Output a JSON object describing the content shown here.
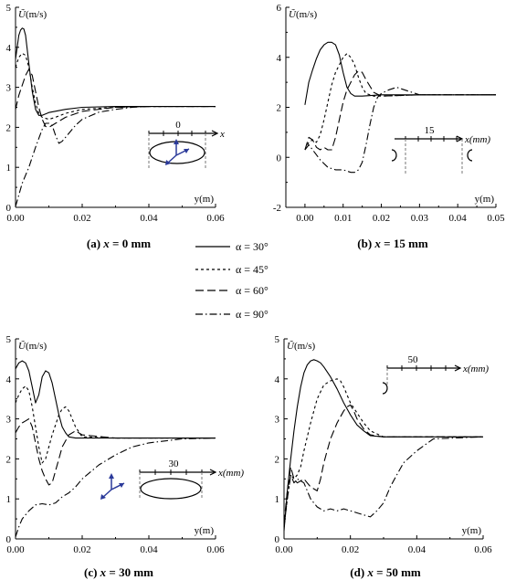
{
  "legend": [
    {
      "label": "α = 30°",
      "dash": "solid"
    },
    {
      "label": "α = 45°",
      "dash": "short"
    },
    {
      "label": "α = 60°",
      "dash": "long"
    },
    {
      "label": "α = 90°",
      "dash": "dashdot"
    }
  ],
  "chart_data": [
    {
      "type": "line",
      "caption_prefix": "(a) ",
      "caption_var": "x",
      "caption_rest": " = 0 mm",
      "ylabel_sym": "Ũ",
      "ylabel_unit": "(m/s)",
      "xlabel": "y(m)",
      "xlim": [
        0,
        0.06
      ],
      "ylim": [
        0,
        5
      ],
      "xticks": [
        "0.00",
        "0.02",
        "0.04",
        "0.06"
      ],
      "yticks": [
        "0",
        "1",
        "2",
        "3",
        "4",
        "5"
      ],
      "inset": {
        "label": "0",
        "axis": "x"
      },
      "series": [
        {
          "name": "α = 30°",
          "x": [
            0,
            0.0005,
            0.001,
            0.0015,
            0.002,
            0.0025,
            0.003,
            0.004,
            0.005,
            0.006,
            0.007,
            0.008,
            0.01,
            0.015,
            0.02,
            0.03,
            0.04,
            0.06
          ],
          "y": [
            3.7,
            4.0,
            4.3,
            4.43,
            4.48,
            4.46,
            4.3,
            3.6,
            2.9,
            2.45,
            2.3,
            2.3,
            2.37,
            2.45,
            2.5,
            2.52,
            2.52,
            2.52
          ]
        },
        {
          "name": "α = 45°",
          "x": [
            0,
            0.001,
            0.002,
            0.003,
            0.004,
            0.005,
            0.006,
            0.007,
            0.008,
            0.01,
            0.012,
            0.015,
            0.02,
            0.03,
            0.04,
            0.06
          ],
          "y": [
            3.5,
            3.75,
            3.85,
            3.8,
            3.5,
            3.0,
            2.6,
            2.35,
            2.25,
            2.2,
            2.25,
            2.35,
            2.45,
            2.5,
            2.52,
            2.52
          ]
        },
        {
          "name": "α = 60°",
          "x": [
            0,
            0.001,
            0.002,
            0.003,
            0.004,
            0.005,
            0.006,
            0.007,
            0.008,
            0.009,
            0.01,
            0.012,
            0.015,
            0.02,
            0.03,
            0.04,
            0.06
          ],
          "y": [
            2.45,
            2.8,
            3.05,
            3.3,
            3.45,
            3.3,
            2.9,
            2.5,
            2.2,
            2.02,
            2.0,
            2.1,
            2.25,
            2.4,
            2.5,
            2.52,
            2.52
          ]
        },
        {
          "name": "α = 90°",
          "x": [
            0,
            0.002,
            0.004,
            0.006,
            0.008,
            0.009,
            0.01,
            0.011,
            0.012,
            0.013,
            0.014,
            0.016,
            0.018,
            0.02,
            0.025,
            0.03,
            0.035,
            0.04,
            0.06
          ],
          "y": [
            0.02,
            0.6,
            1.0,
            1.5,
            1.95,
            2.1,
            2.1,
            2.05,
            1.8,
            1.6,
            1.65,
            1.85,
            2.05,
            2.2,
            2.38,
            2.45,
            2.5,
            2.52,
            2.52
          ]
        }
      ]
    },
    {
      "type": "line",
      "caption_prefix": "(b) ",
      "caption_var": "x",
      "caption_rest": " = 15 mm",
      "ylabel_sym": "Ũ",
      "ylabel_unit": "(m/s)",
      "xlabel": "y(m)",
      "xlim": [
        -0.005,
        0.05
      ],
      "ylim": [
        -2,
        6
      ],
      "xticks": [
        "0.00",
        "0.01",
        "0.02",
        "0.03",
        "0.04",
        "0.05"
      ],
      "yticks": [
        "-2",
        "0",
        "2",
        "4",
        "6"
      ],
      "inset": {
        "label": "15",
        "axis": "x(mm)"
      },
      "series": [
        {
          "name": "α = 30°",
          "x": [
            0,
            0.001,
            0.002,
            0.003,
            0.004,
            0.005,
            0.006,
            0.007,
            0.008,
            0.009,
            0.01,
            0.011,
            0.012,
            0.013,
            0.015,
            0.02,
            0.03,
            0.05
          ],
          "y": [
            2.1,
            3.0,
            3.5,
            3.95,
            4.3,
            4.5,
            4.6,
            4.6,
            4.5,
            4.1,
            3.4,
            2.8,
            2.55,
            2.45,
            2.45,
            2.5,
            2.5,
            2.5
          ]
        },
        {
          "name": "α = 45°",
          "x": [
            0,
            0.001,
            0.002,
            0.003,
            0.004,
            0.005,
            0.006,
            0.007,
            0.008,
            0.01,
            0.011,
            0.012,
            0.013,
            0.014,
            0.015,
            0.016,
            0.018,
            0.02,
            0.03,
            0.05
          ],
          "y": [
            0.3,
            0.6,
            0.7,
            0.6,
            0.9,
            1.5,
            2.2,
            2.9,
            3.4,
            4.0,
            4.15,
            4.0,
            3.7,
            3.2,
            2.8,
            2.55,
            2.45,
            2.45,
            2.5,
            2.5
          ]
        },
        {
          "name": "α = 60°",
          "x": [
            0,
            0.001,
            0.002,
            0.003,
            0.004,
            0.005,
            0.006,
            0.007,
            0.008,
            0.009,
            0.01,
            0.011,
            0.012,
            0.013,
            0.014,
            0.015,
            0.016,
            0.018,
            0.02,
            0.03,
            0.05
          ],
          "y": [
            0.3,
            0.8,
            0.7,
            0.4,
            0.3,
            0.4,
            0.3,
            0.3,
            0.8,
            1.5,
            2.2,
            2.7,
            3.0,
            3.3,
            3.45,
            3.4,
            3.1,
            2.6,
            2.45,
            2.5,
            2.5
          ]
        },
        {
          "name": "α = 90°",
          "x": [
            0,
            0.001,
            0.002,
            0.004,
            0.006,
            0.008,
            0.01,
            0.012,
            0.013,
            0.014,
            0.015,
            0.016,
            0.017,
            0.018,
            0.019,
            0.02,
            0.022,
            0.024,
            0.026,
            0.03,
            0.05
          ],
          "y": [
            0.3,
            0.5,
            0.3,
            -0.1,
            -0.4,
            -0.5,
            -0.5,
            -0.6,
            -0.6,
            -0.5,
            -0.2,
            0.5,
            1.3,
            2.0,
            2.4,
            2.55,
            2.7,
            2.8,
            2.7,
            2.5,
            2.5
          ]
        }
      ]
    },
    {
      "type": "line",
      "caption_prefix": "(c) ",
      "caption_var": "x",
      "caption_rest": " = 30 mm",
      "ylabel_sym": "Ũ",
      "ylabel_unit": "(m/s)",
      "xlabel": "y(m)",
      "xlim": [
        0,
        0.06
      ],
      "ylim": [
        0,
        5
      ],
      "xticks": [
        "0.00",
        "0.02",
        "0.04",
        "0.06"
      ],
      "yticks": [
        "0",
        "1",
        "2",
        "3",
        "4",
        "5"
      ],
      "inset": {
        "label": "30",
        "axis": "x(mm)"
      },
      "series": [
        {
          "name": "α = 30°",
          "x": [
            0,
            0.001,
            0.002,
            0.003,
            0.004,
            0.005,
            0.006,
            0.007,
            0.008,
            0.009,
            0.01,
            0.011,
            0.012,
            0.013,
            0.014,
            0.015,
            0.016,
            0.018,
            0.02,
            0.03,
            0.06
          ],
          "y": [
            4.25,
            4.4,
            4.45,
            4.4,
            4.2,
            3.8,
            3.4,
            3.6,
            4.05,
            4.2,
            4.15,
            3.9,
            3.5,
            3.1,
            2.8,
            2.65,
            2.55,
            2.52,
            2.52,
            2.52,
            2.52
          ]
        },
        {
          "name": "α = 45°",
          "x": [
            0,
            0.001,
            0.002,
            0.003,
            0.004,
            0.005,
            0.006,
            0.007,
            0.008,
            0.009,
            0.01,
            0.011,
            0.012,
            0.013,
            0.014,
            0.015,
            0.016,
            0.017,
            0.018,
            0.02,
            0.03,
            0.06
          ],
          "y": [
            3.4,
            3.6,
            3.75,
            3.82,
            3.7,
            3.3,
            2.8,
            2.3,
            1.9,
            2.0,
            2.3,
            2.6,
            2.85,
            3.1,
            3.25,
            3.3,
            3.2,
            3.0,
            2.8,
            2.55,
            2.52,
            2.52
          ]
        },
        {
          "name": "α = 60°",
          "x": [
            0,
            0.001,
            0.002,
            0.003,
            0.004,
            0.005,
            0.006,
            0.007,
            0.008,
            0.009,
            0.01,
            0.011,
            0.012,
            0.013,
            0.014,
            0.016,
            0.018,
            0.02,
            0.03,
            0.06
          ],
          "y": [
            2.65,
            2.8,
            2.9,
            2.95,
            3.0,
            2.8,
            2.4,
            2.0,
            1.7,
            1.5,
            1.35,
            1.4,
            1.7,
            2.0,
            2.3,
            2.6,
            2.7,
            2.6,
            2.52,
            2.52
          ]
        },
        {
          "name": "α = 90°",
          "x": [
            0,
            0.001,
            0.002,
            0.004,
            0.006,
            0.008,
            0.01,
            0.012,
            0.014,
            0.016,
            0.018,
            0.02,
            0.025,
            0.03,
            0.035,
            0.04,
            0.045,
            0.05,
            0.06
          ],
          "y": [
            0.05,
            0.3,
            0.5,
            0.7,
            0.85,
            0.88,
            0.85,
            0.9,
            1.05,
            1.15,
            1.3,
            1.5,
            1.85,
            2.1,
            2.3,
            2.4,
            2.45,
            2.5,
            2.52
          ]
        }
      ]
    },
    {
      "type": "line",
      "caption_prefix": "(d) ",
      "caption_var": "x",
      "caption_rest": " = 50 mm",
      "ylabel_sym": "Ũ",
      "ylabel_unit": "(m/s)",
      "xlabel": "y(m)",
      "xlim": [
        0,
        0.06
      ],
      "ylim": [
        0,
        5
      ],
      "xticks": [
        "0.00",
        "0.02",
        "0.04",
        "0.06"
      ],
      "yticks": [
        "0",
        "1",
        "2",
        "3",
        "4",
        "5"
      ],
      "inset": {
        "label": "50",
        "axis": "x(mm)"
      },
      "series": [
        {
          "name": "α = 30°",
          "x": [
            0,
            0.001,
            0.002,
            0.003,
            0.004,
            0.005,
            0.006,
            0.007,
            0.008,
            0.009,
            0.01,
            0.011,
            0.012,
            0.014,
            0.016,
            0.018,
            0.02,
            0.022,
            0.024,
            0.026,
            0.03,
            0.06
          ],
          "y": [
            0.2,
            1.2,
            2.0,
            2.7,
            3.3,
            3.8,
            4.15,
            4.35,
            4.45,
            4.48,
            4.45,
            4.4,
            4.3,
            4.05,
            3.75,
            3.4,
            3.1,
            2.85,
            2.7,
            2.58,
            2.55,
            2.55
          ]
        },
        {
          "name": "α = 45°",
          "x": [
            0,
            0.001,
            0.002,
            0.003,
            0.004,
            0.005,
            0.006,
            0.008,
            0.01,
            0.012,
            0.014,
            0.016,
            0.017,
            0.018,
            0.019,
            0.02,
            0.022,
            0.024,
            0.026,
            0.03,
            0.06
          ],
          "y": [
            0.3,
            1.0,
            1.6,
            1.5,
            1.6,
            1.8,
            2.2,
            2.9,
            3.5,
            3.85,
            3.95,
            4.0,
            3.95,
            3.8,
            3.6,
            3.4,
            3.15,
            2.9,
            2.7,
            2.55,
            2.55
          ]
        },
        {
          "name": "α = 60°",
          "x": [
            0,
            0.001,
            0.002,
            0.003,
            0.004,
            0.005,
            0.006,
            0.008,
            0.01,
            0.011,
            0.012,
            0.013,
            0.014,
            0.016,
            0.018,
            0.019,
            0.02,
            0.021,
            0.022,
            0.024,
            0.026,
            0.03,
            0.06
          ],
          "y": [
            0.4,
            1.2,
            1.8,
            1.5,
            1.4,
            1.45,
            1.5,
            1.3,
            1.2,
            1.5,
            1.9,
            2.2,
            2.5,
            2.9,
            3.2,
            3.3,
            3.35,
            3.2,
            3.0,
            2.75,
            2.6,
            2.55,
            2.55
          ]
        },
        {
          "name": "α = 90°",
          "x": [
            0,
            0.001,
            0.002,
            0.003,
            0.004,
            0.005,
            0.006,
            0.008,
            0.01,
            0.012,
            0.014,
            0.016,
            0.018,
            0.02,
            0.022,
            0.024,
            0.026,
            0.028,
            0.03,
            0.032,
            0.034,
            0.036,
            0.04,
            0.045,
            0.06
          ],
          "y": [
            0.3,
            1.0,
            1.6,
            1.4,
            1.5,
            1.45,
            1.4,
            1.0,
            0.8,
            0.7,
            0.75,
            0.7,
            0.75,
            0.7,
            0.65,
            0.6,
            0.55,
            0.7,
            0.9,
            1.3,
            1.6,
            1.9,
            2.2,
            2.5,
            2.55
          ]
        }
      ]
    }
  ]
}
